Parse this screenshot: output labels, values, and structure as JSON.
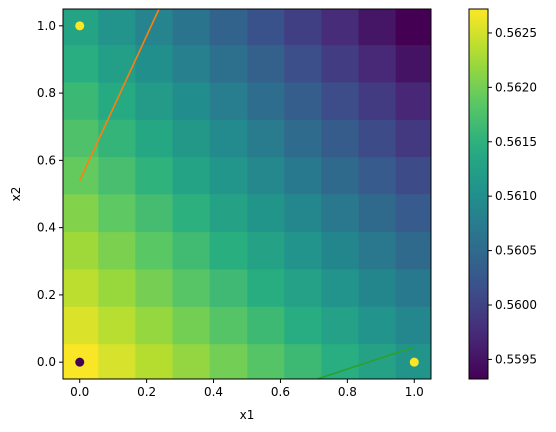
{
  "chart_data": {
    "type": "heatmap",
    "title": "",
    "xlabel": "x1",
    "ylabel": "x2",
    "xlim": [
      -0.05,
      1.05
    ],
    "ylim": [
      -0.05,
      1.05
    ],
    "grid": false,
    "x_ticks": [
      {
        "value": 0.0,
        "label": "0.0"
      },
      {
        "value": 0.2,
        "label": "0.2"
      },
      {
        "value": 0.4,
        "label": "0.4"
      },
      {
        "value": 0.6,
        "label": "0.6"
      },
      {
        "value": 0.8,
        "label": "0.8"
      },
      {
        "value": 1.0,
        "label": "1.0"
      }
    ],
    "y_ticks": [
      {
        "value": 0.0,
        "label": "0.0"
      },
      {
        "value": 0.2,
        "label": "0.2"
      },
      {
        "value": 0.4,
        "label": "0.4"
      },
      {
        "value": 0.6,
        "label": "0.6"
      },
      {
        "value": 0.8,
        "label": "0.8"
      },
      {
        "value": 1.0,
        "label": "1.0"
      }
    ],
    "grid_values": {
      "x": [
        0.0,
        0.111,
        0.222,
        0.333,
        0.444,
        0.556,
        0.667,
        0.778,
        0.889,
        1.0
      ],
      "y": [
        0.0,
        0.111,
        0.222,
        0.333,
        0.444,
        0.556,
        0.667,
        0.778,
        0.889,
        1.0
      ],
      "v00": 0.5627,
      "v10": 0.5611,
      "v01": 0.5613,
      "v11": 0.5593
    },
    "colorbar": {
      "colormap": "viridis",
      "range": [
        0.55932,
        0.56272
      ],
      "ticks": [
        {
          "value": 0.5595,
          "label": "0.5595"
        },
        {
          "value": 0.56,
          "label": "0.5600"
        },
        {
          "value": 0.5605,
          "label": "0.5605"
        },
        {
          "value": 0.561,
          "label": "0.5610"
        },
        {
          "value": 0.5615,
          "label": "0.5615"
        },
        {
          "value": 0.562,
          "label": "0.5620"
        },
        {
          "value": 0.5625,
          "label": "0.5625"
        }
      ]
    },
    "points": [
      {
        "x": 0.0,
        "y": 1.0,
        "color": "#fde725"
      },
      {
        "x": 1.0,
        "y": 0.0,
        "color": "#fde725"
      },
      {
        "x": 0.0,
        "y": 0.0,
        "color": "#440154"
      }
    ],
    "lines": [
      {
        "color": "#ff7f0e",
        "points": [
          [
            0.0,
            0.54
          ],
          [
            0.237,
            1.05
          ]
        ]
      },
      {
        "color": "#2ca02c",
        "points": [
          [
            0.71,
            -0.05
          ],
          [
            1.0,
            0.045
          ]
        ]
      }
    ]
  }
}
